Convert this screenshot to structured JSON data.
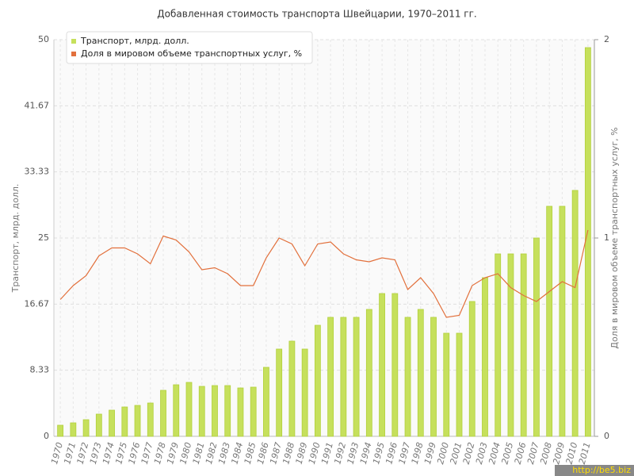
{
  "chart_data": {
    "type": "bar-line",
    "title": "Добавленная стоимость транспорта Швейцарии, 1970–2011 гг.",
    "y_label": "Транспорт, млрд. долл.",
    "y2_label": "Доля в мировом объеме транспортных услуг, %",
    "categories": [
      "1970",
      "1971",
      "1972",
      "1973",
      "1974",
      "1975",
      "1976",
      "1977",
      "1978",
      "1979",
      "1980",
      "1981",
      "1982",
      "1983",
      "1984",
      "1985",
      "1986",
      "1987",
      "1988",
      "1989",
      "1990",
      "1991",
      "1992",
      "1993",
      "1994",
      "1995",
      "1996",
      "1997",
      "1998",
      "1999",
      "2000",
      "2001",
      "2002",
      "2003",
      "2004",
      "2005",
      "2006",
      "2007",
      "2008",
      "2009",
      "2010",
      "2011"
    ],
    "series": [
      {
        "name": "Транспорт, млрд. долл.",
        "color": "#c6e05c",
        "axis": "y",
        "values": [
          1.4,
          1.7,
          2.1,
          2.8,
          3.3,
          3.7,
          3.9,
          4.2,
          5.8,
          6.5,
          6.8,
          6.3,
          6.4,
          6.4,
          6.1,
          6.2,
          8.7,
          11,
          12,
          11,
          14,
          15,
          15,
          15,
          16,
          18,
          18,
          15,
          16,
          15,
          13,
          13,
          17,
          20,
          23,
          23,
          23,
          25,
          29,
          29,
          31,
          49
        ]
      },
      {
        "name": "Доля в мировом объеме транспортных услуг, %",
        "color": "#e2703c",
        "axis": "y2",
        "values": [
          0.69,
          0.76,
          0.81,
          0.91,
          0.95,
          0.95,
          0.92,
          0.87,
          1.01,
          0.99,
          0.93,
          0.84,
          0.85,
          0.82,
          0.76,
          0.76,
          0.9,
          1.0,
          0.97,
          0.86,
          0.97,
          0.98,
          0.92,
          0.89,
          0.88,
          0.9,
          0.89,
          0.74,
          0.8,
          0.72,
          0.6,
          0.61,
          0.76,
          0.8,
          0.82,
          0.75,
          0.71,
          0.68,
          0.73,
          0.78,
          0.75,
          1.04
        ]
      }
    ],
    "ylim": [
      0,
      50
    ],
    "yticks": [
      0,
      {
        "value": 8.333,
        "label": "8.33"
      },
      {
        "value": 16.667,
        "label": "16.67"
      },
      25,
      {
        "value": 33.333,
        "label": "33.33"
      },
      {
        "value": 41.667,
        "label": "41.67"
      },
      50
    ],
    "y2lim": [
      0,
      2
    ],
    "y2ticks": [
      0,
      1,
      2
    ],
    "grid": true,
    "legend": "top-left",
    "watermark": "http://be5.biz"
  }
}
